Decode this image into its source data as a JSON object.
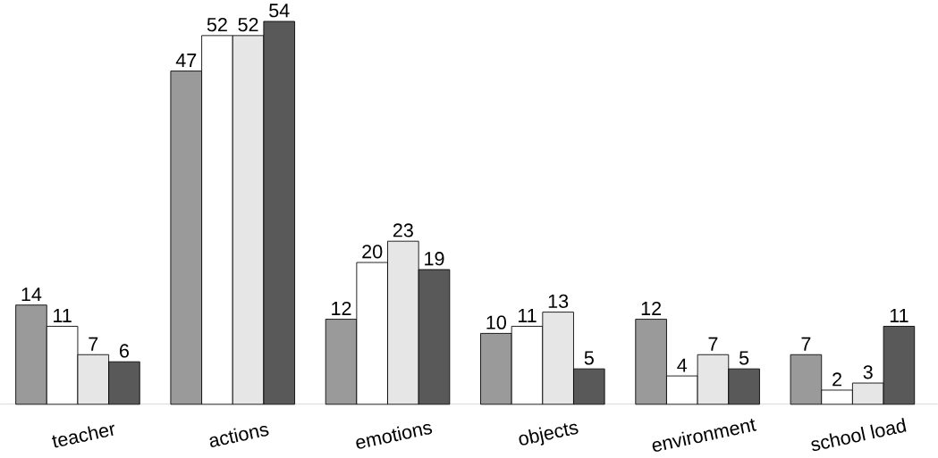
{
  "chart_data": {
    "type": "bar",
    "categories": [
      "teacher",
      "actions",
      "emotions",
      "objects",
      "environment",
      "school load"
    ],
    "series": [
      {
        "color": "#9a9a9a",
        "values": [
          14,
          47,
          12,
          10,
          12,
          7
        ]
      },
      {
        "color": "#ffffff",
        "values": [
          11,
          52,
          20,
          11,
          4,
          2
        ]
      },
      {
        "color": "#e6e6e6",
        "values": [
          7,
          52,
          23,
          13,
          7,
          3
        ]
      },
      {
        "color": "#595959",
        "values": [
          6,
          54,
          19,
          5,
          5,
          11
        ]
      }
    ],
    "data_labels": true,
    "legend": false,
    "grid": false
  }
}
